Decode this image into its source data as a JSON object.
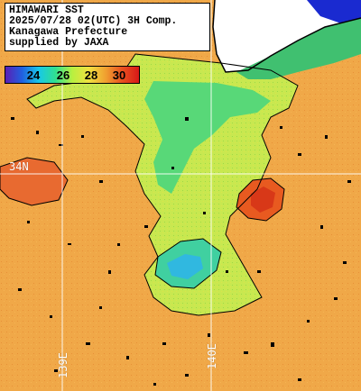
{
  "caption": {
    "line1": "HIMAWARI SST",
    "line2": "2025/07/28 02(UTC) 3H Comp.",
    "line3": "Kanagawa Prefecture",
    "line4": "supplied by JAXA"
  },
  "colorbar": {
    "ticks": [
      "24",
      "26",
      "28",
      "30"
    ],
    "gradient": [
      "#5a1fb5",
      "#2060e0",
      "#18c8e8",
      "#30e090",
      "#b8f040",
      "#f0e040",
      "#f0a030",
      "#e85020",
      "#d81818"
    ]
  },
  "graticule": {
    "lat_labels": [
      "34N"
    ],
    "lon_labels": [
      "139E",
      "140E"
    ]
  },
  "colors": {
    "land": "#ffffff",
    "ocean_warm": "#f0a848",
    "ocean_hot": "#e85a20",
    "ocean_mid": "#b8e048",
    "ocean_cool": "#50d870",
    "ocean_cold": "#30c8a0",
    "deep_blue": "#1a2ad0",
    "cloud": "#000000"
  }
}
